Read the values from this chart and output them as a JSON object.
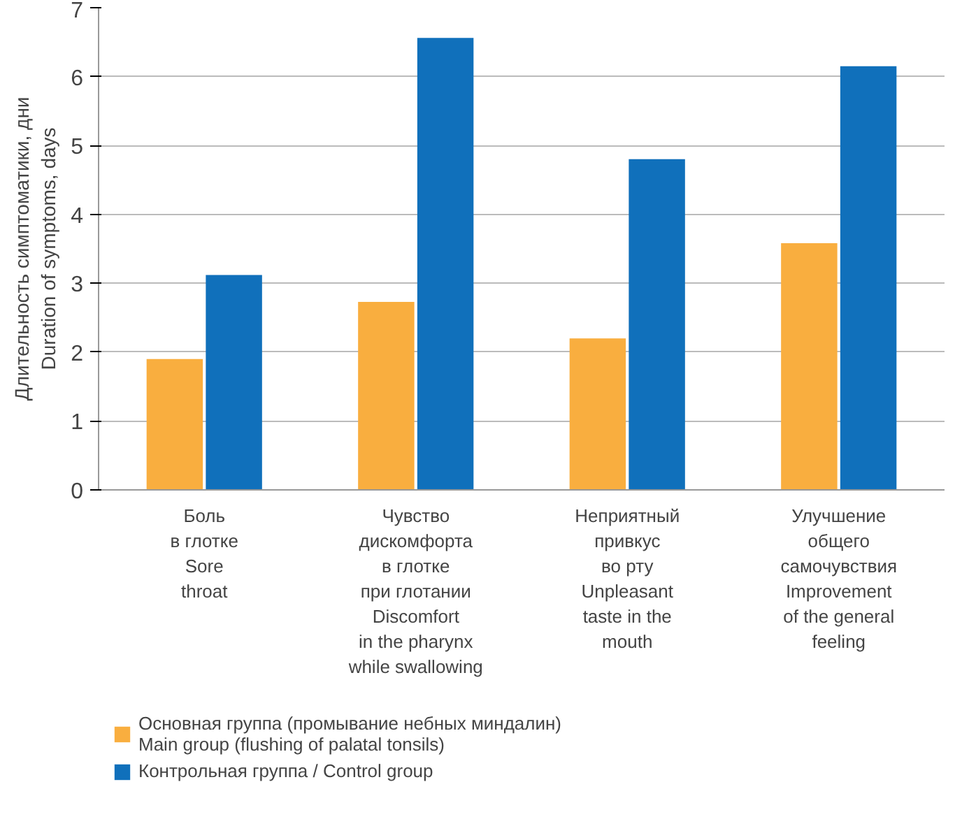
{
  "chart_data": {
    "type": "bar",
    "ylabel": "Длительность симптоматики, дни\nDuration of symptoms, days",
    "categories": [
      "Боль\nв глотке\nSore\nthroat",
      "Чувство\nдискомфорта\nв глотке\nпри глотании\nDiscomfort\nin the pharynx\nwhile swallowing",
      "Неприятный\nпривкус\nво рту\nUnpleasant\ntaste in the\nmouth",
      "Улучшение\nобщего\nсамочувствия\nImprovement\nof the general\nfeeling"
    ],
    "series": [
      {
        "name": "Основная группа (промывание небных миндалин)\nMain group (flushing of palatal tonsils)",
        "color": "#f9ae3f",
        "values": [
          1.9,
          2.73,
          2.2,
          3.58
        ]
      },
      {
        "name": "Контрольная группа / Control group",
        "color": "#1070bb",
        "values": [
          3.12,
          6.56,
          4.8,
          6.15
        ]
      }
    ],
    "ylim": [
      0,
      7
    ],
    "yticks": [
      0,
      1,
      2,
      3,
      4,
      5,
      6,
      7
    ],
    "grid": "y",
    "legend": "bottom"
  }
}
